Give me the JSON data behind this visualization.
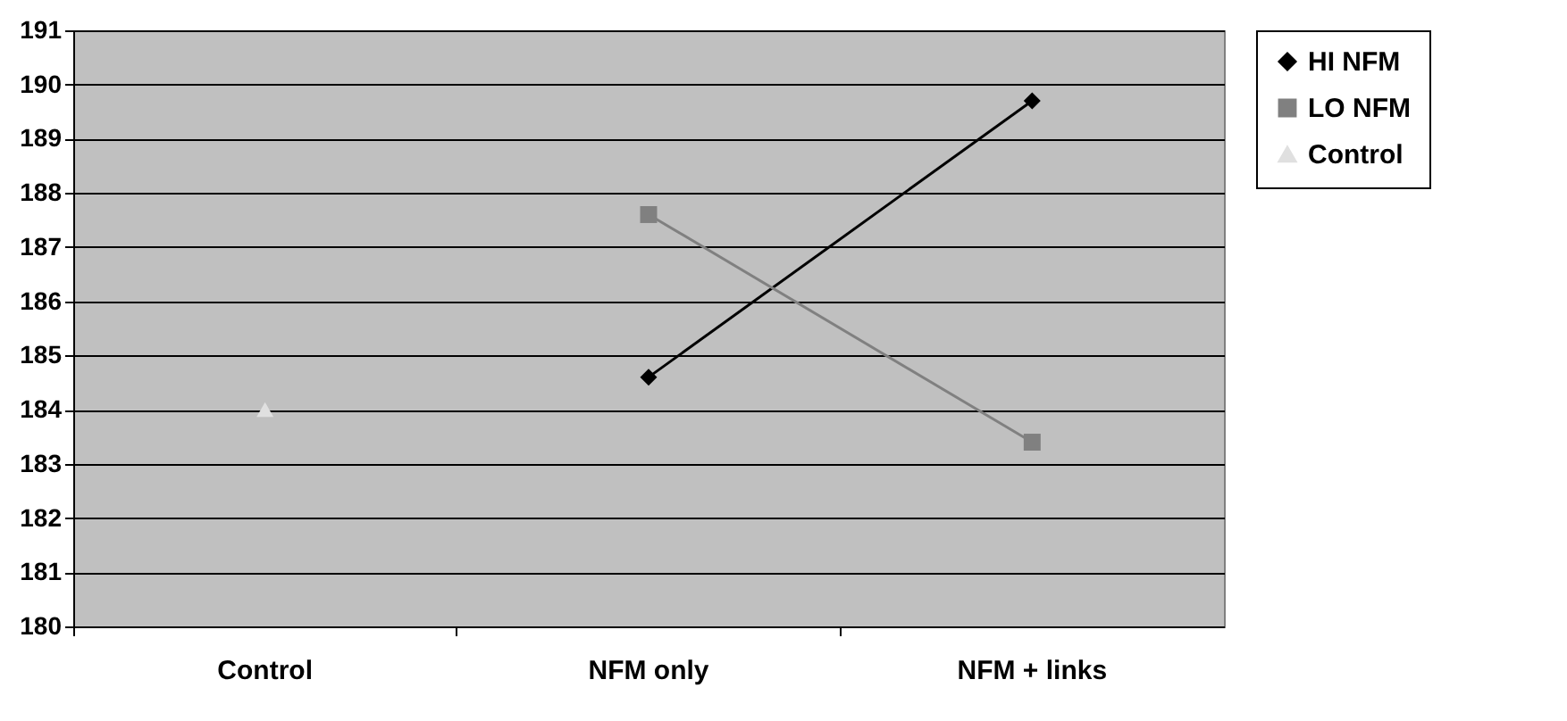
{
  "chart_data": {
    "type": "line",
    "categories": [
      "Control",
      "NFM only",
      "NFM + links"
    ],
    "series": [
      {
        "name": "HI NFM",
        "color": "#000000",
        "marker": "diamond",
        "values": [
          null,
          184.6,
          189.7
        ]
      },
      {
        "name": "LO NFM",
        "color": "#808080",
        "marker": "square",
        "values": [
          null,
          187.6,
          183.4
        ]
      },
      {
        "name": "Control",
        "color": "#e0e0e0",
        "marker": "triangle",
        "values": [
          184.0,
          null,
          null
        ]
      }
    ],
    "ylim": [
      180,
      191
    ],
    "yticks": [
      180,
      181,
      182,
      183,
      184,
      185,
      186,
      187,
      188,
      189,
      190,
      191
    ],
    "grid": "y",
    "legend": "right"
  }
}
